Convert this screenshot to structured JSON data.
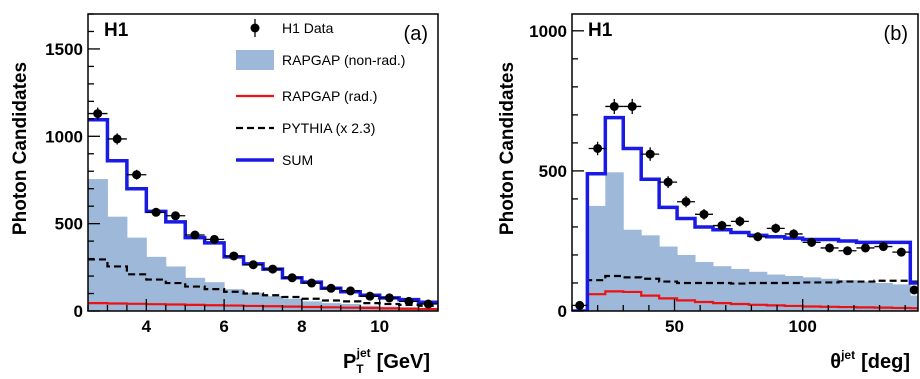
{
  "colors": {
    "data": "#000000",
    "nonrad_fill": "#9db8d9",
    "rad_line": "#ee1111",
    "pythia_line": "#000000",
    "sum_line": "#1a1ae6"
  },
  "chart_data": [
    {
      "type": "histogram",
      "panel_label": "(a)",
      "experiment_label": "H1",
      "ylabel": "Photon Candidates",
      "xlabel_main": "P",
      "xlabel_sub": "T",
      "xlabel_sup": "jet",
      "xlabel_unit": "[GeV]",
      "xlim": [
        2.5,
        11.5
      ],
      "ylim": [
        0,
        1700
      ],
      "xticks": [
        4,
        6,
        8,
        10
      ],
      "yticks": [
        0,
        500,
        1000,
        1500
      ],
      "xtick_labels": [
        "4",
        "6",
        "8",
        "10"
      ],
      "ytick_labels": [
        "0",
        "500",
        "1000",
        "1500"
      ],
      "legend": {
        "data": "H1 Data",
        "nonrad": "RAPGAP (non-rad.)",
        "rad": "RAPGAP (rad.)",
        "pythia": "PYTHIA (x 2.3)",
        "sum": "SUM"
      },
      "bin_edges": [
        2.5,
        3.0,
        3.5,
        4.0,
        4.5,
        5.0,
        5.5,
        6.0,
        6.5,
        7.0,
        7.5,
        8.0,
        8.5,
        9.0,
        9.5,
        10.0,
        10.5,
        11.0,
        11.5
      ],
      "nonrad": [
        755,
        540,
        420,
        310,
        255,
        190,
        165,
        125,
        105,
        85,
        70,
        55,
        45,
        40,
        30,
        25,
        22,
        18
      ],
      "rad": [
        45,
        43,
        41,
        39,
        37,
        35,
        33,
        31,
        29,
        27,
        25,
        23,
        21,
        19,
        17,
        15,
        13,
        11
      ],
      "pythia": [
        295,
        255,
        210,
        180,
        160,
        140,
        125,
        110,
        100,
        90,
        80,
        70,
        60,
        55,
        45,
        40,
        35,
        30
      ],
      "sum": [
        1095,
        860,
        700,
        570,
        510,
        420,
        390,
        310,
        270,
        240,
        190,
        165,
        130,
        110,
        90,
        75,
        65,
        50
      ],
      "data": {
        "x": [
          2.75,
          3.25,
          3.75,
          4.25,
          4.75,
          5.25,
          5.75,
          6.25,
          6.75,
          7.25,
          7.75,
          8.25,
          8.75,
          9.25,
          9.75,
          10.25,
          10.75,
          11.25
        ],
        "y": [
          1130,
          985,
          780,
          565,
          545,
          435,
          410,
          315,
          265,
          240,
          190,
          160,
          130,
          115,
          85,
          75,
          55,
          40
        ],
        "err": [
          35,
          32,
          28,
          24,
          23,
          21,
          20,
          18,
          16,
          15,
          14,
          13,
          12,
          11,
          10,
          9,
          8,
          7
        ]
      }
    },
    {
      "type": "histogram",
      "panel_label": "(b)",
      "experiment_label": "H1",
      "ylabel": "Photon Candidates",
      "xlabel_main": "θ",
      "xlabel_sup": "jet",
      "xlabel_unit": "[deg]",
      "xlim": [
        10,
        145
      ],
      "ylim": [
        0,
        1060
      ],
      "xticks": [
        50,
        100
      ],
      "yticks": [
        0,
        500,
        1000
      ],
      "xtick_labels": [
        "50",
        "100"
      ],
      "ytick_labels": [
        "0",
        "500",
        "1000"
      ],
      "bin_edges": [
        10,
        16,
        23,
        30,
        37,
        44,
        51,
        58,
        65,
        72,
        79,
        86,
        93,
        100,
        107,
        114,
        121,
        128,
        135,
        142,
        145
      ],
      "nonrad": [
        0,
        375,
        495,
        290,
        270,
        230,
        200,
        175,
        160,
        150,
        140,
        130,
        125,
        120,
        115,
        110,
        105,
        100,
        95,
        55
      ],
      "rad": [
        0,
        60,
        70,
        68,
        55,
        45,
        38,
        32,
        28,
        25,
        22,
        20,
        18,
        16,
        15,
        14,
        13,
        12,
        11,
        10
      ],
      "pythia": [
        0,
        110,
        125,
        120,
        115,
        105,
        100,
        100,
        100,
        98,
        100,
        100,
        100,
        102,
        102,
        105,
        105,
        108,
        108,
        105
      ],
      "sum": [
        0,
        490,
        690,
        580,
        470,
        370,
        330,
        300,
        290,
        280,
        270,
        265,
        260,
        255,
        255,
        250,
        245,
        245,
        245,
        100
      ],
      "data": {
        "x": [
          13,
          20,
          26.5,
          33.5,
          40.5,
          47.5,
          54.5,
          61.5,
          68.5,
          75.5,
          82.5,
          89.5,
          96.5,
          103.5,
          110.5,
          117.5,
          124.5,
          131.5,
          138.5,
          143.5
        ],
        "y": [
          20,
          580,
          730,
          730,
          560,
          460,
          390,
          345,
          305,
          320,
          265,
          295,
          275,
          245,
          225,
          215,
          225,
          230,
          210,
          75
        ],
        "err": [
          5,
          24,
          27,
          27,
          24,
          21,
          20,
          19,
          17,
          18,
          16,
          17,
          17,
          16,
          15,
          15,
          15,
          15,
          15,
          9
        ]
      }
    }
  ]
}
